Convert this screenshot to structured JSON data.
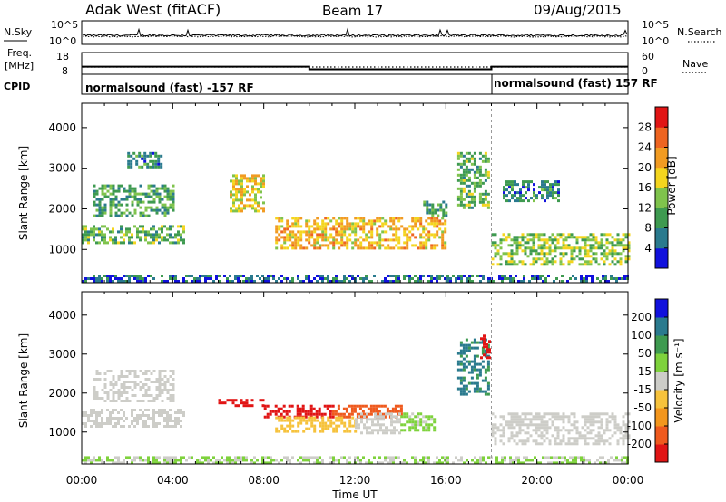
{
  "header": {
    "site": "Adak West (fitACF)",
    "beam": "Beam 17",
    "date": "09/Aug/2015"
  },
  "top_panels": {
    "nsky_label": "N.Sky",
    "nsearch_label": "N.Search",
    "noise_ticks_left": [
      "10^5",
      "10^0"
    ],
    "noise_ticks_right": [
      "10^5",
      "10^0"
    ],
    "freq_label_line1": "Freq.",
    "freq_label_line2": "[MHz]",
    "freq_ticks": [
      "18",
      "8"
    ],
    "nave_label": "Nave",
    "nave_ticks": [
      "60",
      "0"
    ],
    "cpid_label": "CPID",
    "cpid_segments": [
      {
        "text": "normalsound (fast) -157 RF",
        "start_hour": 0,
        "end_hour": 18
      },
      {
        "text": "normalsound (fast) 157 RF",
        "start_hour": 18,
        "end_hour": 24
      }
    ],
    "freq_steps": [
      {
        "start_hour": 0,
        "end_hour": 10,
        "mhz": 11.5
      },
      {
        "start_hour": 10,
        "end_hour": 18,
        "mhz": 10.3
      },
      {
        "start_hour": 18,
        "end_hour": 24,
        "mhz": 11.5
      }
    ]
  },
  "chart_data": [
    {
      "type": "heatmap",
      "parameter": "Power",
      "ylabel": "Slant Range [km]",
      "ylim": [
        180,
        4600
      ],
      "xlim_hours": [
        0,
        24
      ],
      "y_ticks": [
        1000,
        2000,
        3000,
        4000
      ],
      "colorbar": {
        "label": "Power [dB]",
        "range": [
          0,
          32
        ],
        "ticks": [
          "4",
          "8",
          "12",
          "16",
          "20",
          "24",
          "28"
        ],
        "colors": [
          "#1111dd",
          "#2a7a8e",
          "#3e9a50",
          "#7fc34c",
          "#f4d51e",
          "#f19b22",
          "#ee6420",
          "#e11515"
        ]
      },
      "echo_regions": [
        {
          "x": [
            0.0,
            4.5
          ],
          "range_km": [
            1150,
            1600
          ],
          "value": 12
        },
        {
          "x": [
            0.5,
            4.0
          ],
          "range_km": [
            1800,
            2600
          ],
          "value": 10
        },
        {
          "x": [
            2.0,
            3.5
          ],
          "range_km": [
            3000,
            3400
          ],
          "value": 8
        },
        {
          "x": [
            6.5,
            8.0
          ],
          "range_km": [
            1950,
            2850
          ],
          "value": 18
        },
        {
          "x": [
            8.5,
            16.0
          ],
          "range_km": [
            1000,
            1800
          ],
          "value": 20
        },
        {
          "x": [
            15.0,
            16.0
          ],
          "range_km": [
            1800,
            2200
          ],
          "value": 10
        },
        {
          "x": [
            16.5,
            17.9
          ],
          "range_km": [
            2000,
            3400
          ],
          "value": 12
        },
        {
          "x": [
            18.5,
            21.0
          ],
          "range_km": [
            2200,
            2700
          ],
          "value": 8
        },
        {
          "x": [
            18.0,
            24.0
          ],
          "range_km": [
            600,
            1400
          ],
          "value": 14
        },
        {
          "x": [
            0.0,
            24.0
          ],
          "range_km": [
            180,
            380
          ],
          "value": 6
        }
      ]
    },
    {
      "type": "heatmap",
      "parameter": "Velocity",
      "ylabel": "Slant Range [km]",
      "xlabel": "Time UT",
      "ylim": [
        180,
        4600
      ],
      "xlim_hours": [
        0,
        24
      ],
      "x_tick_labels": [
        "00:00",
        "04:00",
        "08:00",
        "12:00",
        "16:00",
        "20:00",
        "00:00"
      ],
      "y_ticks": [
        1000,
        2000,
        3000,
        4000
      ],
      "colorbar": {
        "label": "Velocity [m s⁻¹]",
        "range": [
          -250,
          250
        ],
        "ticks": [
          "200",
          "100",
          "50",
          "15",
          "-15",
          "-50",
          "-100",
          "-200"
        ],
        "colors": [
          "#e11515",
          "#ef5a1e",
          "#f3961d",
          "#f6c23c",
          "#cdcdc8",
          "#7ed23c",
          "#3e9a50",
          "#2a7a8e",
          "#1111dd"
        ]
      },
      "echo_regions": [
        {
          "x": [
            0.0,
            4.5
          ],
          "range_km": [
            1150,
            1600
          ],
          "value": 0
        },
        {
          "x": [
            0.5,
            4.0
          ],
          "range_km": [
            1800,
            2600
          ],
          "value": 0
        },
        {
          "x": [
            6.0,
            8.0
          ],
          "range_km": [
            1650,
            1850
          ],
          "value": -220
        },
        {
          "x": [
            8.0,
            11.0
          ],
          "range_km": [
            1400,
            1700
          ],
          "value": -230
        },
        {
          "x": [
            11.0,
            14.0
          ],
          "range_km": [
            1400,
            1700
          ],
          "value": -160
        },
        {
          "x": [
            8.5,
            12.0
          ],
          "range_km": [
            1000,
            1400
          ],
          "value": -60
        },
        {
          "x": [
            12.0,
            14.0
          ],
          "range_km": [
            1000,
            1500
          ],
          "value": 0
        },
        {
          "x": [
            14.0,
            15.5
          ],
          "range_km": [
            1050,
            1500
          ],
          "value": 40
        },
        {
          "x": [
            16.5,
            17.9
          ],
          "range_km": [
            2000,
            3400
          ],
          "value": 150
        },
        {
          "x": [
            17.5,
            17.9
          ],
          "range_km": [
            2900,
            3500
          ],
          "value": -230
        },
        {
          "x": [
            18.0,
            24.0
          ],
          "range_km": [
            700,
            1500
          ],
          "value": 0
        },
        {
          "x": [
            0.0,
            24.0
          ],
          "range_km": [
            180,
            380
          ],
          "value": 30
        }
      ]
    }
  ]
}
